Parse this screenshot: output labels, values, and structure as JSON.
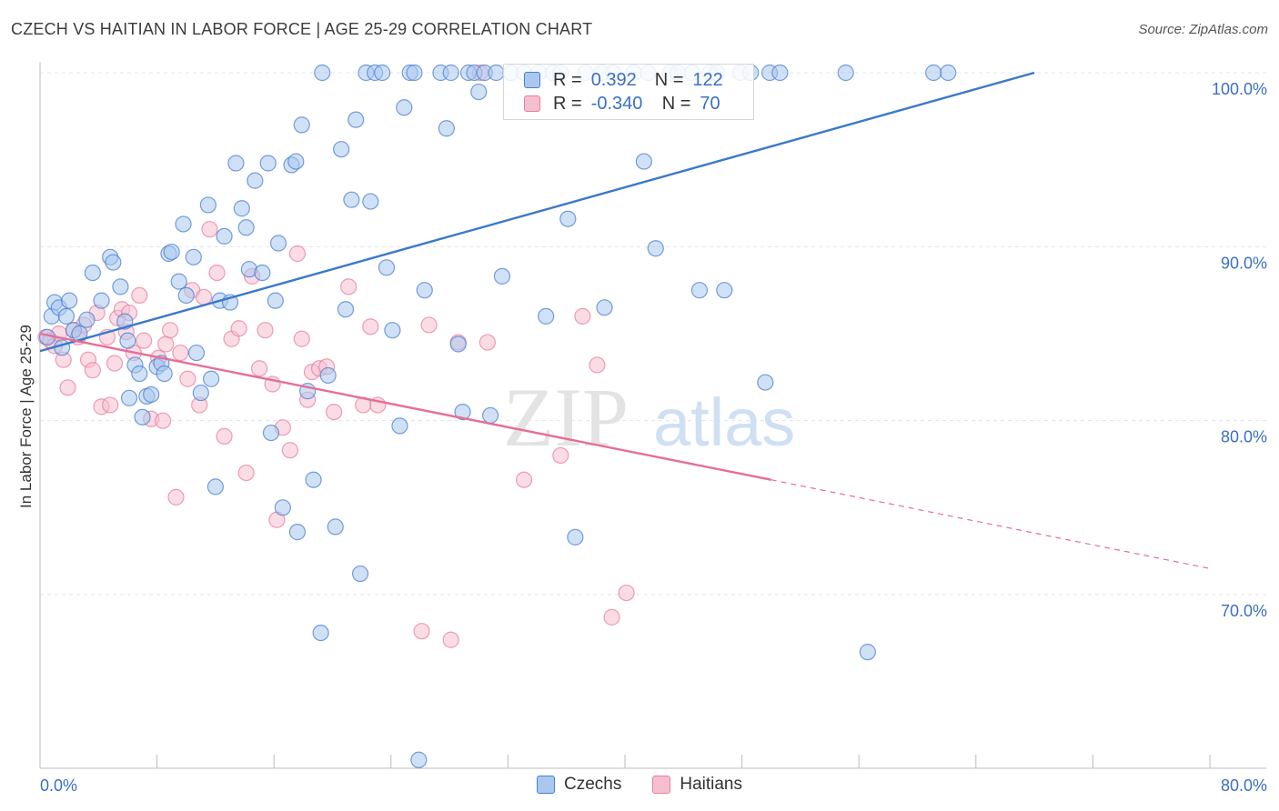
{
  "header": {
    "title": "CZECH VS HAITIAN IN LABOR FORCE | AGE 25-29 CORRELATION CHART",
    "source": "Source: ZipAtlas.com"
  },
  "watermark": {
    "zip": "ZIP",
    "atlas": "atlas"
  },
  "legend": {
    "r_label": "R =",
    "n_label": "N =",
    "rows": [
      {
        "r": "0.392",
        "n": "122"
      },
      {
        "r": "-0.340",
        "n": "70"
      }
    ]
  },
  "colors": {
    "czech_fill": "#aac8ee",
    "czech_stroke": "#4a7fd0",
    "czech_line": "#3a78cc",
    "haitian_fill": "#f5bfd0",
    "haitian_stroke": "#e87fa0",
    "haitian_line": "#e86d96",
    "axis_text": "#3a6fc4"
  },
  "chart_data": {
    "type": "scatter",
    "title": "CZECH VS HAITIAN IN LABOR FORCE | AGE 25-29 CORRELATION CHART",
    "xlabel": "",
    "ylabel": "In Labor Force | Age 25-29",
    "xlim": [
      0,
      80
    ],
    "ylim": [
      60.5,
      101
    ],
    "x_tick_labels": [
      "0.0%",
      "80.0%"
    ],
    "y_ticks": [
      70,
      80,
      90,
      100
    ],
    "y_tick_labels": [
      "70.0%",
      "80.0%",
      "90.0%",
      "100.0%"
    ],
    "grid": true,
    "legend_placement": "top-center",
    "series": [
      {
        "name": "Czechs",
        "r": 0.392,
        "n": 122,
        "trend": {
          "x0": 0,
          "y0": 84,
          "x1": 68,
          "y1": 100
        },
        "points": [
          [
            0.5,
            84.8
          ],
          [
            0.8,
            86
          ],
          [
            1,
            86.8
          ],
          [
            1.3,
            86.5
          ],
          [
            1.5,
            84.2
          ],
          [
            1.8,
            86
          ],
          [
            2,
            86.9
          ],
          [
            2.3,
            85.2
          ],
          [
            2.7,
            85
          ],
          [
            3.2,
            85.8
          ],
          [
            3.6,
            88.5
          ],
          [
            4.2,
            86.9
          ],
          [
            4.8,
            89.4
          ],
          [
            5,
            89.1
          ],
          [
            5.5,
            87.7
          ],
          [
            5.8,
            85.7
          ],
          [
            6,
            84.6
          ],
          [
            6.1,
            81.3
          ],
          [
            6.5,
            83.2
          ],
          [
            6.8,
            82.7
          ],
          [
            7,
            80.2
          ],
          [
            7.3,
            81.4
          ],
          [
            7.6,
            81.5
          ],
          [
            8,
            83.1
          ],
          [
            8.3,
            83.3
          ],
          [
            8.5,
            82.7
          ],
          [
            8.8,
            89.6
          ],
          [
            9,
            89.7
          ],
          [
            9.5,
            88
          ],
          [
            9.8,
            91.3
          ],
          [
            10,
            87.2
          ],
          [
            10.5,
            89.4
          ],
          [
            10.7,
            83.9
          ],
          [
            11,
            81.6
          ],
          [
            11.5,
            92.4
          ],
          [
            11.7,
            82.4
          ],
          [
            12,
            76.2
          ],
          [
            12.3,
            86.9
          ],
          [
            12.6,
            90.6
          ],
          [
            13,
            86.8
          ],
          [
            13.4,
            94.8
          ],
          [
            13.8,
            92.2
          ],
          [
            14.1,
            91.1
          ],
          [
            14.3,
            88.7
          ],
          [
            14.7,
            93.8
          ],
          [
            15.2,
            88.5
          ],
          [
            15.6,
            94.8
          ],
          [
            15.8,
            79.3
          ],
          [
            16.1,
            86.9
          ],
          [
            16.3,
            90.2
          ],
          [
            16.6,
            75
          ],
          [
            17.2,
            94.7
          ],
          [
            17.5,
            94.9
          ],
          [
            17.6,
            73.6
          ],
          [
            17.9,
            97
          ],
          [
            18.3,
            81.7
          ],
          [
            18.7,
            76.6
          ],
          [
            19.2,
            67.8
          ],
          [
            19.3,
            100
          ],
          [
            19.7,
            82.6
          ],
          [
            20.2,
            73.9
          ],
          [
            20.6,
            95.6
          ],
          [
            20.9,
            86.4
          ],
          [
            21.3,
            92.7
          ],
          [
            21.6,
            97.3
          ],
          [
            21.9,
            71.2
          ],
          [
            22.3,
            100
          ],
          [
            22.6,
            92.6
          ],
          [
            22.9,
            100
          ],
          [
            23.4,
            100
          ],
          [
            23.7,
            88.8
          ],
          [
            24.1,
            85.2
          ],
          [
            24.6,
            79.7
          ],
          [
            24.9,
            98
          ],
          [
            25.3,
            100
          ],
          [
            25.6,
            100
          ],
          [
            25.9,
            60.5
          ],
          [
            26.3,
            87.5
          ],
          [
            27.4,
            100
          ],
          [
            27.8,
            96.8
          ],
          [
            28.1,
            100
          ],
          [
            28.6,
            84.4
          ],
          [
            28.9,
            80.5
          ],
          [
            29.3,
            100
          ],
          [
            29.7,
            100
          ],
          [
            30,
            98.9
          ],
          [
            30.4,
            100
          ],
          [
            30.8,
            80.3
          ],
          [
            31.2,
            100
          ],
          [
            31.6,
            88.3
          ],
          [
            32.2,
            100
          ],
          [
            33.1,
            100
          ],
          [
            34.1,
            100
          ],
          [
            34.6,
            86
          ],
          [
            35.1,
            100
          ],
          [
            35.6,
            100
          ],
          [
            36.1,
            91.6
          ],
          [
            36.6,
            73.3
          ],
          [
            37.3,
            100
          ],
          [
            38.4,
            100
          ],
          [
            38.6,
            86.5
          ],
          [
            39.2,
            100
          ],
          [
            40.6,
            100
          ],
          [
            41.3,
            94.9
          ],
          [
            41.6,
            100
          ],
          [
            42.1,
            89.9
          ],
          [
            43.1,
            100
          ],
          [
            43.6,
            100
          ],
          [
            44.6,
            100
          ],
          [
            45.1,
            87.5
          ],
          [
            45.8,
            100
          ],
          [
            46.3,
            100
          ],
          [
            46.8,
            87.5
          ],
          [
            47.9,
            100
          ],
          [
            48.6,
            100
          ],
          [
            49.6,
            82.2
          ],
          [
            49.9,
            100
          ],
          [
            50.6,
            100
          ],
          [
            55.1,
            100
          ],
          [
            56.6,
            66.7
          ],
          [
            61.1,
            100
          ],
          [
            62.1,
            100
          ]
        ]
      },
      {
        "name": "Haitians",
        "r": -0.34,
        "n": 70,
        "trend": {
          "x0": 0,
          "y0": 85,
          "x1": 50,
          "y1": 76.6,
          "dashed_to": {
            "x": 80,
            "y": 71.5
          }
        },
        "points": [
          [
            0.4,
            84.8
          ],
          [
            0.7,
            84.6
          ],
          [
            1,
            84.3
          ],
          [
            1.3,
            85
          ],
          [
            1.6,
            83.5
          ],
          [
            1.9,
            81.9
          ],
          [
            2.3,
            85.2
          ],
          [
            2.6,
            84.8
          ],
          [
            3,
            85.5
          ],
          [
            3.3,
            83.5
          ],
          [
            3.6,
            82.9
          ],
          [
            3.9,
            86.2
          ],
          [
            4.2,
            80.8
          ],
          [
            4.6,
            84.8
          ],
          [
            4.8,
            80.9
          ],
          [
            5.1,
            83.3
          ],
          [
            5.3,
            85.9
          ],
          [
            5.6,
            86.4
          ],
          [
            5.9,
            85.1
          ],
          [
            6.1,
            86.2
          ],
          [
            6.4,
            83.9
          ],
          [
            6.8,
            87.2
          ],
          [
            7.1,
            84.6
          ],
          [
            7.6,
            80.1
          ],
          [
            8.1,
            83.6
          ],
          [
            8.4,
            80
          ],
          [
            8.6,
            84.4
          ],
          [
            8.9,
            85.2
          ],
          [
            9.3,
            75.6
          ],
          [
            9.6,
            83.9
          ],
          [
            10.1,
            82.4
          ],
          [
            10.4,
            87.5
          ],
          [
            10.9,
            80.9
          ],
          [
            11.2,
            87.1
          ],
          [
            11.6,
            91
          ],
          [
            12.1,
            88.5
          ],
          [
            12.6,
            79.1
          ],
          [
            13.1,
            84.7
          ],
          [
            13.6,
            85.3
          ],
          [
            14.1,
            77
          ],
          [
            14.5,
            88.3
          ],
          [
            15,
            83
          ],
          [
            15.4,
            85.2
          ],
          [
            15.9,
            82.1
          ],
          [
            16.2,
            74.3
          ],
          [
            16.6,
            79.6
          ],
          [
            17.1,
            78.3
          ],
          [
            17.6,
            89.6
          ],
          [
            17.9,
            84.7
          ],
          [
            18.3,
            81.2
          ],
          [
            18.6,
            82.8
          ],
          [
            19.1,
            83
          ],
          [
            19.6,
            83.1
          ],
          [
            20.1,
            80.5
          ],
          [
            21.1,
            87.7
          ],
          [
            22.1,
            80.9
          ],
          [
            22.6,
            85.4
          ],
          [
            23.1,
            80.9
          ],
          [
            26.1,
            67.9
          ],
          [
            26.6,
            85.5
          ],
          [
            28.1,
            67.4
          ],
          [
            28.6,
            84.5
          ],
          [
            30.1,
            100
          ],
          [
            30.6,
            84.5
          ],
          [
            33.1,
            76.6
          ],
          [
            35.6,
            78
          ],
          [
            37.1,
            86
          ],
          [
            38.1,
            83.2
          ],
          [
            39.1,
            68.7
          ],
          [
            40.1,
            70.1
          ]
        ]
      }
    ]
  }
}
